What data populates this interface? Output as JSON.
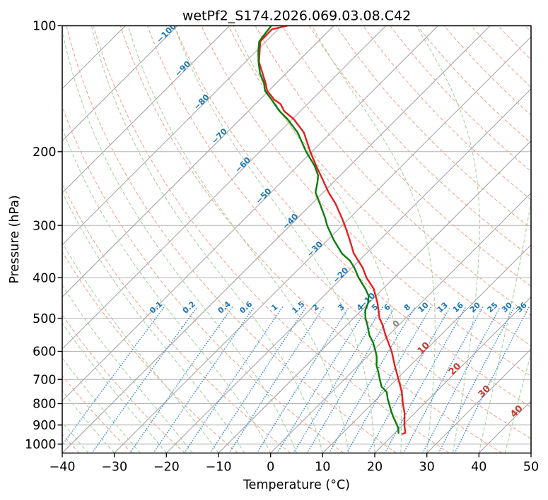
{
  "title": "wetPf2_S174.2026.069.03.08.C42",
  "axes": {
    "xlabel": "Temperature (°C)",
    "ylabel": "Pressure (hPa)",
    "x_ticks": [
      -40,
      -30,
      -20,
      -10,
      0,
      10,
      20,
      30,
      40,
      50
    ],
    "p_ticks": [
      100,
      200,
      300,
      400,
      500,
      600,
      700,
      800,
      900,
      1000
    ]
  },
  "colors": {
    "background": "#ffffff",
    "spine": "#000000",
    "grid": "#b3b3b3",
    "isotherm": "#9e9e9e",
    "dry_adiabat": "#f2a58e",
    "moist_adiabat": "#a4d3a0",
    "mixing_ratio": "#4d94cf",
    "cold_label": "#1f77b4",
    "zero_label": "#7f7f7f",
    "warm_label": "#c8392f",
    "mixing_label": "#1f77b4",
    "temperature": "#e51f1f",
    "dewpoint": "#0b7d0b",
    "text": "#000000"
  },
  "chart_data": {
    "type": "line",
    "variant": "skew-T log-p sounding",
    "title": "wetPf2_S174.2026.069.03.08.C42",
    "xlabel": "Temperature (°C)",
    "ylabel": "Pressure (hPa)",
    "xlim": [
      -40,
      50
    ],
    "pressure_lim": [
      1050,
      100
    ],
    "skew_deg": 45,
    "grid": true,
    "isotherms": {
      "min_c": -110,
      "max_c": 50,
      "step_c": 10,
      "label_values": [
        -100,
        -90,
        -80,
        -70,
        -60,
        -50,
        -40,
        -30,
        -20,
        -10,
        0,
        10,
        20,
        30,
        40
      ],
      "label_pressures": [
        106,
        129,
        155,
        187,
        219,
        260,
        299,
        348,
        402,
        462,
        525,
        601,
        674,
        763,
        851
      ]
    },
    "dry_adiabats": {
      "min_c": -40,
      "max_c": 190,
      "step_c": 10
    },
    "moist_adiabats": {
      "min_c": -40,
      "max_c": 50,
      "step_c": 5
    },
    "mixing_ratio_g_kg": [
      0.1,
      0.2,
      0.4,
      0.6,
      1,
      1.5,
      2,
      3,
      4,
      5,
      6,
      8,
      10,
      13,
      16,
      20,
      25,
      30,
      36
    ],
    "mixing_label_pressure_hpa": 478,
    "mixing_top_pressure_hpa": 470,
    "series": [
      {
        "name": "temperature",
        "label": "Temperature",
        "points_p_hpa_t_c": [
          [
            100,
            -79.0
          ],
          [
            102,
            -81.2
          ],
          [
            109,
            -81.1
          ],
          [
            122,
            -77.4
          ],
          [
            137,
            -72.1
          ],
          [
            143,
            -70.3
          ],
          [
            150,
            -67.3
          ],
          [
            154,
            -65.1
          ],
          [
            160,
            -63.1
          ],
          [
            167,
            -59.8
          ],
          [
            180,
            -55.2
          ],
          [
            200,
            -50.3
          ],
          [
            216,
            -46.5
          ],
          [
            228,
            -43.7
          ],
          [
            250,
            -39.0
          ],
          [
            266,
            -35.5
          ],
          [
            288,
            -31.5
          ],
          [
            300,
            -29.5
          ],
          [
            324,
            -25.9
          ],
          [
            350,
            -22.4
          ],
          [
            379,
            -17.9
          ],
          [
            400,
            -15.3
          ],
          [
            425,
            -11.8
          ],
          [
            460,
            -8.3
          ],
          [
            500,
            -5.0
          ],
          [
            518,
            -3.2
          ],
          [
            550,
            -0.5
          ],
          [
            600,
            3.7
          ],
          [
            650,
            7.1
          ],
          [
            700,
            10.4
          ],
          [
            751,
            13.5
          ],
          [
            800,
            15.9
          ],
          [
            844,
            18.1
          ],
          [
            900,
            20.3
          ],
          [
            940,
            22.0
          ],
          [
            945,
            21.7
          ]
        ]
      },
      {
        "name": "dewpoint",
        "label": "Dewpoint",
        "points_p_hpa_t_c": [
          [
            100,
            -82.0
          ],
          [
            104,
            -81.7
          ],
          [
            109,
            -81.3
          ],
          [
            115,
            -79.6
          ],
          [
            122,
            -77.5
          ],
          [
            130,
            -75.0
          ],
          [
            137,
            -72.4
          ],
          [
            143,
            -70.7
          ],
          [
            150,
            -67.8
          ],
          [
            160,
            -64.0
          ],
          [
            167,
            -61.0
          ],
          [
            180,
            -56.4
          ],
          [
            200,
            -51.1
          ],
          [
            216,
            -46.8
          ],
          [
            228,
            -44.2
          ],
          [
            237,
            -43.0
          ],
          [
            250,
            -41.5
          ],
          [
            266,
            -38.5
          ],
          [
            288,
            -34.7
          ],
          [
            300,
            -32.9
          ],
          [
            324,
            -29.0
          ],
          [
            350,
            -24.7
          ],
          [
            364,
            -21.8
          ],
          [
            379,
            -19.5
          ],
          [
            400,
            -16.8
          ],
          [
            425,
            -13.4
          ],
          [
            442,
            -11.4
          ],
          [
            460,
            -10.1
          ],
          [
            478,
            -9.3
          ],
          [
            500,
            -7.7
          ],
          [
            518,
            -6.1
          ],
          [
            550,
            -3.6
          ],
          [
            571,
            -1.6
          ],
          [
            600,
            0.6
          ],
          [
            617,
            1.8
          ],
          [
            650,
            3.6
          ],
          [
            672,
            5.1
          ],
          [
            700,
            6.8
          ],
          [
            728,
            8.5
          ],
          [
            751,
            10.6
          ],
          [
            780,
            12.1
          ],
          [
            810,
            13.8
          ],
          [
            832,
            15.0
          ],
          [
            857,
            16.4
          ],
          [
            888,
            18.2
          ],
          [
            915,
            19.7
          ],
          [
            940,
            20.7
          ]
        ]
      }
    ]
  }
}
